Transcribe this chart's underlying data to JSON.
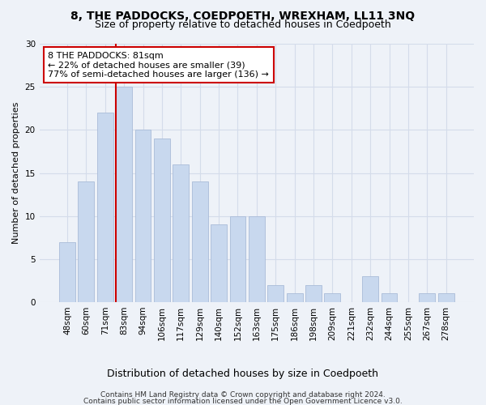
{
  "title1": "8, THE PADDOCKS, COEDPOETH, WREXHAM, LL11 3NQ",
  "title2": "Size of property relative to detached houses in Coedpoeth",
  "xlabel": "Distribution of detached houses by size in Coedpoeth",
  "ylabel": "Number of detached properties",
  "categories": [
    "48sqm",
    "60sqm",
    "71sqm",
    "83sqm",
    "94sqm",
    "106sqm",
    "117sqm",
    "129sqm",
    "140sqm",
    "152sqm",
    "163sqm",
    "175sqm",
    "186sqm",
    "198sqm",
    "209sqm",
    "221sqm",
    "232sqm",
    "244sqm",
    "255sqm",
    "267sqm",
    "278sqm"
  ],
  "values": [
    7,
    14,
    22,
    25,
    20,
    19,
    16,
    14,
    9,
    10,
    10,
    2,
    1,
    2,
    1,
    0,
    3,
    1,
    0,
    1,
    1
  ],
  "bar_color": "#c8d8ee",
  "bar_edge_color": "#aabcd8",
  "grid_color": "#d4dcea",
  "annotation_box_color": "#ffffff",
  "annotation_border_color": "#cc0000",
  "annotation_text_line1": "8 THE PADDOCKS: 81sqm",
  "annotation_text_line2": "← 22% of detached houses are smaller (39)",
  "annotation_text_line3": "77% of semi-detached houses are larger (136) →",
  "ylim": [
    0,
    30
  ],
  "yticks": [
    0,
    5,
    10,
    15,
    20,
    25,
    30
  ],
  "footer_line1": "Contains HM Land Registry data © Crown copyright and database right 2024.",
  "footer_line2": "Contains public sector information licensed under the Open Government Licence v3.0.",
  "title1_fontsize": 10,
  "title2_fontsize": 9,
  "xlabel_fontsize": 9,
  "ylabel_fontsize": 8,
  "tick_fontsize": 7.5,
  "annotation_fontsize": 8,
  "footer_fontsize": 6.5,
  "background_color": "#eef2f8"
}
